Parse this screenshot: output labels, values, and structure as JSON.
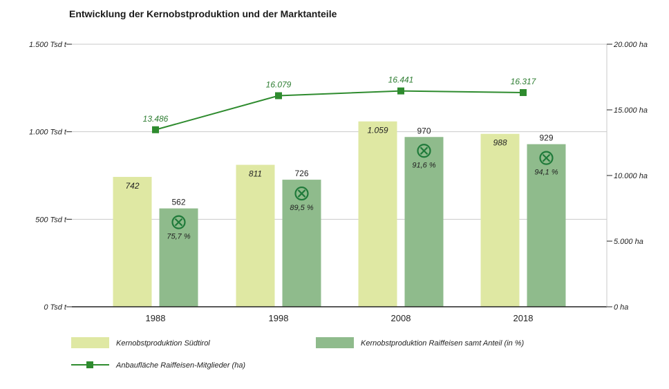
{
  "chart_data": {
    "type": "bar",
    "title": "Entwicklung der Kernobstproduktion und der Marktanteile",
    "categories": [
      "1988",
      "1998",
      "2008",
      "2018"
    ],
    "y_left": {
      "min": 0,
      "max": 1500,
      "ticks": [
        {
          "value": 0,
          "label": "0 Tsd t"
        },
        {
          "value": 500,
          "label": "500 Tsd t"
        },
        {
          "value": 1000,
          "label": "1.000 Tsd t"
        },
        {
          "value": 1500,
          "label": "1.500 Tsd t"
        }
      ]
    },
    "y_right": {
      "min": 0,
      "max": 20000,
      "ticks": [
        {
          "value": 0,
          "label": "0 ha"
        },
        {
          "value": 5000,
          "label": "5.000 ha"
        },
        {
          "value": 10000,
          "label": "10.000 ha"
        },
        {
          "value": 15000,
          "label": "15.000 ha"
        },
        {
          "value": 20000,
          "label": "20.000 ha"
        }
      ]
    },
    "series": [
      {
        "name": "Kernobstproduktion Südtirol",
        "type": "bar",
        "color": "#dfe8a3",
        "values": [
          742,
          811,
          1059,
          988
        ],
        "labels": [
          "742",
          "811",
          "1.059",
          "988"
        ]
      },
      {
        "name": "Kernobstproduktion Raiffeisen samt Anteil (in %)",
        "type": "bar",
        "color": "#8fbb8c",
        "values": [
          562,
          726,
          970,
          929
        ],
        "labels": [
          "562",
          "726",
          "970",
          "929"
        ],
        "shares": [
          "75,7 %",
          "89,5 %",
          "91,6 %",
          "94,1 %"
        ]
      },
      {
        "name": "Anbaufläche Raiffeisen-Mitglieder (ha)",
        "type": "line",
        "axis": "right",
        "color": "#2e8b2e",
        "values": [
          13486,
          16079,
          16441,
          16317
        ],
        "labels": [
          "13.486",
          "16.079",
          "16.441",
          "16.317"
        ]
      }
    ],
    "legend_placement": "bottom"
  },
  "colors": {
    "bar1": "#dfe8a3",
    "bar2": "#8fbb8c",
    "line": "#2e8b2e",
    "line_label": "#2e7d32",
    "share_icon": "#1f7a3a",
    "axis": "#222222",
    "grid": "#c9c9c9"
  }
}
